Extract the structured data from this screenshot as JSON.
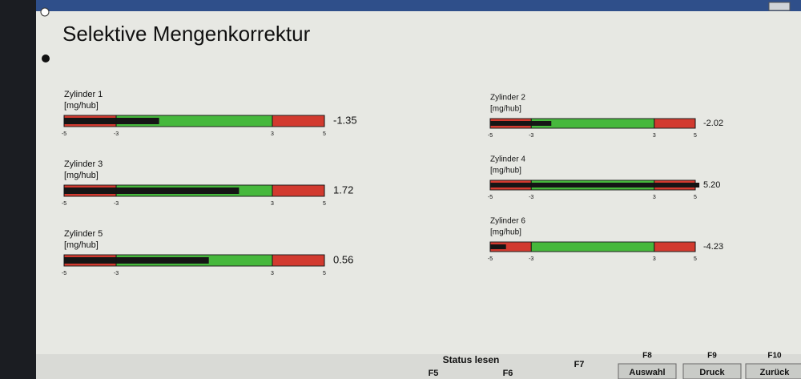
{
  "title": "Selektive Mengenkorrektur",
  "scale": {
    "lim": [
      -5,
      5
    ],
    "ticks": [
      -5,
      -3,
      3,
      5
    ]
  },
  "gauges": [
    {
      "label": "Zylinder 1",
      "unit": "[mg/hub]",
      "value": -1.35
    },
    {
      "label": "Zylinder 2",
      "unit": "[mg/hub]",
      "value": -2.02
    },
    {
      "label": "Zylinder 3",
      "unit": "[mg/hub]",
      "value": 1.72
    },
    {
      "label": "Zylinder 4",
      "unit": "[mg/hub]",
      "value": 5.2,
      "value_label": "5.20"
    },
    {
      "label": "Zylinder 5",
      "unit": "[mg/hub]",
      "value": 0.56
    },
    {
      "label": "Zylinder 6",
      "unit": "[mg/hub]",
      "value": -4.23
    }
  ],
  "function_bar": {
    "status": "Status lesen",
    "keys": [
      {
        "key": "F5"
      },
      {
        "key": "F6"
      },
      {
        "key": "F7"
      },
      {
        "key": "F8",
        "label": "Auswahl"
      },
      {
        "key": "F9",
        "label": "Druck"
      },
      {
        "key": "F10",
        "label": "Zurück"
      }
    ]
  }
}
